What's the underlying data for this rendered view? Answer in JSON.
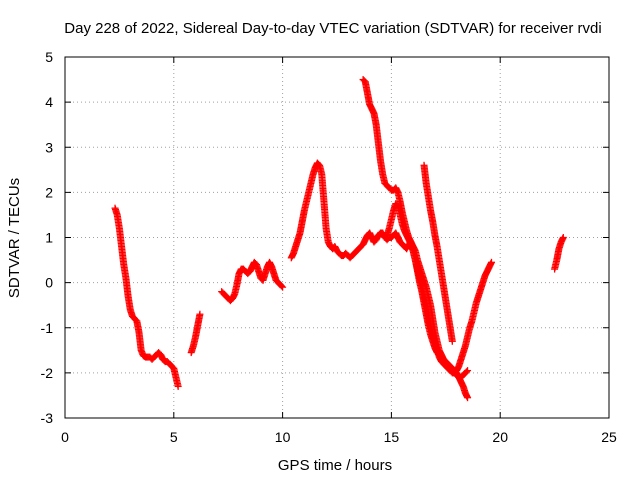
{
  "chart_data": {
    "type": "scatter",
    "title": "Day 228 of 2022, Sidereal Day-to-day VTEC variation (SDTVAR) for receiver rvdi",
    "xlabel": "GPS time / hours",
    "ylabel": "SDTVAR / TECUs",
    "xlim": [
      0,
      25
    ],
    "ylim": [
      -3,
      5
    ],
    "xticks": [
      0,
      5,
      10,
      15,
      20,
      25
    ],
    "yticks": [
      -3,
      -2,
      -1,
      0,
      1,
      2,
      3,
      4,
      5
    ],
    "grid": true,
    "marker": "plus",
    "color": "#ff0000",
    "series": [
      {
        "name": "SDTVAR",
        "x": [
          2.3,
          2.4,
          2.5,
          2.6,
          2.7,
          2.8,
          2.9,
          3.0,
          3.1,
          3.2,
          3.3,
          3.4,
          3.5,
          3.6,
          3.7,
          3.8,
          3.9,
          4.0,
          4.1,
          4.2,
          4.3,
          4.4,
          4.5,
          4.6,
          4.7,
          4.8,
          4.9,
          5.0,
          5.1,
          5.2,
          5.8,
          5.9,
          6.0,
          6.1,
          6.2,
          7.2,
          7.3,
          7.4,
          7.5,
          7.6,
          7.7,
          7.8,
          7.9,
          8.0,
          8.1,
          8.2,
          8.3,
          8.4,
          8.5,
          8.6,
          8.7,
          8.8,
          8.9,
          9.0,
          9.1,
          9.2,
          9.3,
          9.4,
          9.5,
          9.6,
          9.7,
          9.8,
          9.9,
          10.0,
          10.4,
          10.5,
          10.6,
          10.7,
          10.8,
          10.9,
          11.0,
          11.1,
          11.2,
          11.3,
          11.4,
          11.5,
          11.6,
          11.7,
          11.8,
          11.9,
          12.0,
          12.1,
          12.2,
          12.3,
          12.4,
          12.5,
          12.6,
          12.7,
          12.8,
          12.9,
          13.0,
          13.1,
          13.2,
          13.3,
          13.4,
          13.5,
          13.6,
          13.7,
          13.8,
          13.9,
          14.0,
          14.1,
          14.2,
          14.3,
          14.4,
          14.5,
          14.6,
          14.7,
          14.8,
          14.9,
          15.0,
          15.1,
          15.2,
          15.3,
          15.4,
          15.5,
          15.6,
          15.7,
          15.8,
          15.9,
          16.0,
          16.1,
          16.2,
          16.3,
          16.4,
          16.5,
          16.6,
          16.7,
          16.8,
          16.9,
          17.0,
          17.1,
          17.2,
          17.3,
          17.4,
          17.5,
          17.6,
          17.7,
          17.8,
          17.9,
          18.0,
          18.1,
          18.2,
          18.3,
          18.4,
          18.5,
          13.7,
          13.8,
          13.9,
          14.0,
          14.1,
          14.2,
          14.3,
          14.4,
          14.5,
          14.6,
          14.7,
          14.8,
          14.9,
          15.0,
          15.1,
          15.2,
          15.3,
          15.4,
          15.5,
          15.6,
          15.7,
          15.8,
          15.9,
          16.0,
          16.1,
          16.2,
          16.3,
          16.4,
          16.5,
          16.6,
          16.7,
          16.8,
          16.9,
          17.0,
          17.1,
          17.2,
          17.3,
          17.4,
          17.5,
          17.6,
          17.7,
          17.8,
          17.9,
          18.0,
          18.1,
          18.2,
          18.3,
          18.4,
          18.5,
          18.6,
          18.7,
          18.8,
          18.9,
          19.0,
          19.1,
          19.2,
          19.3,
          19.4,
          19.5,
          19.6,
          14.8,
          14.9,
          15.0,
          15.1,
          15.2,
          15.3,
          15.4,
          15.5,
          15.6,
          15.7,
          15.8,
          15.9,
          16.0,
          16.1,
          16.2,
          16.3,
          16.4,
          16.5,
          16.6,
          16.7,
          16.8,
          16.9,
          17.0,
          17.1,
          17.2,
          17.3,
          17.4,
          17.5,
          17.6,
          17.7,
          17.8,
          17.9,
          18.0,
          18.1,
          18.2,
          18.3,
          18.4,
          18.5,
          16.5,
          16.6,
          16.7,
          16.8,
          16.9,
          17.0,
          17.1,
          17.2,
          17.3,
          17.4,
          17.5,
          17.6,
          17.7,
          17.8,
          22.5,
          22.6,
          22.7,
          22.8,
          22.9
        ],
        "y": [
          1.65,
          1.5,
          1.2,
          0.8,
          0.4,
          0.1,
          -0.3,
          -0.6,
          -0.75,
          -0.8,
          -0.85,
          -1.1,
          -1.5,
          -1.62,
          -1.65,
          -1.65,
          -1.65,
          -1.7,
          -1.65,
          -1.6,
          -1.55,
          -1.6,
          -1.7,
          -1.75,
          -1.75,
          -1.8,
          -1.85,
          -1.9,
          -2.1,
          -2.3,
          -1.55,
          -1.4,
          -1.2,
          -0.95,
          -0.7,
          -0.2,
          -0.25,
          -0.3,
          -0.35,
          -0.4,
          -0.35,
          -0.25,
          -0.05,
          0.2,
          0.3,
          0.3,
          0.25,
          0.2,
          0.25,
          0.35,
          0.45,
          0.4,
          0.25,
          0.1,
          0.05,
          0.2,
          0.35,
          0.45,
          0.35,
          0.2,
          0.05,
          0.0,
          -0.05,
          -0.1,
          0.55,
          0.65,
          0.8,
          0.95,
          1.1,
          1.35,
          1.6,
          1.8,
          2.0,
          2.2,
          2.4,
          2.55,
          2.65,
          2.6,
          2.4,
          1.8,
          1.2,
          0.9,
          0.8,
          0.75,
          0.8,
          0.7,
          0.65,
          0.6,
          0.6,
          0.65,
          0.6,
          0.55,
          0.6,
          0.65,
          0.7,
          0.75,
          0.8,
          0.85,
          0.95,
          1.05,
          1.1,
          1.0,
          0.9,
          0.95,
          1.05,
          1.1,
          1.1,
          1.0,
          0.95,
          1.0,
          1.0,
          1.05,
          1.1,
          1.0,
          0.9,
          0.85,
          0.8,
          0.75,
          0.85,
          0.9,
          0.8,
          0.7,
          0.5,
          0.35,
          0.2,
          0.05,
          -0.1,
          -0.3,
          -0.5,
          -0.8,
          -1.1,
          -1.3,
          -1.5,
          -1.6,
          -1.7,
          -1.8,
          -1.85,
          -1.9,
          -1.95,
          -2.0,
          -2.05,
          -2.1,
          -2.1,
          -2.05,
          -2.0,
          -1.95,
          4.5,
          4.45,
          4.2,
          3.95,
          3.85,
          3.75,
          3.5,
          3.1,
          2.7,
          2.4,
          2.2,
          2.15,
          2.1,
          2.05,
          2.05,
          2.1,
          2.0,
          1.8,
          1.55,
          1.35,
          1.15,
          1.0,
          0.9,
          0.7,
          0.5,
          0.3,
          0.1,
          -0.1,
          -0.3,
          -0.5,
          -0.8,
          -1.0,
          -1.2,
          -1.35,
          -1.5,
          -1.65,
          -1.75,
          -1.8,
          -1.85,
          -1.9,
          -1.95,
          -2.0,
          -2.0,
          -1.95,
          -1.85,
          -1.7,
          -1.55,
          -1.4,
          -1.2,
          -1.0,
          -0.85,
          -0.65,
          -0.45,
          -0.3,
          -0.15,
          0.0,
          0.15,
          0.25,
          0.35,
          0.45,
          1.05,
          1.2,
          1.4,
          1.6,
          1.75,
          1.7,
          1.5,
          1.3,
          1.15,
          1.05,
          0.95,
          0.85,
          0.7,
          0.5,
          0.25,
          0.0,
          -0.2,
          -0.45,
          -0.7,
          -0.95,
          -1.15,
          -1.3,
          -1.45,
          -1.55,
          -1.6,
          -1.65,
          -1.7,
          -1.75,
          -1.8,
          -1.85,
          -1.9,
          -1.95,
          -2.0,
          -2.1,
          -2.2,
          -2.3,
          -2.45,
          -2.55,
          2.6,
          2.2,
          1.9,
          1.6,
          1.35,
          1.05,
          0.8,
          0.5,
          0.2,
          -0.1,
          -0.4,
          -0.7,
          -1.0,
          -1.3,
          0.3,
          0.5,
          0.75,
          0.9,
          1.0
        ]
      }
    ]
  }
}
